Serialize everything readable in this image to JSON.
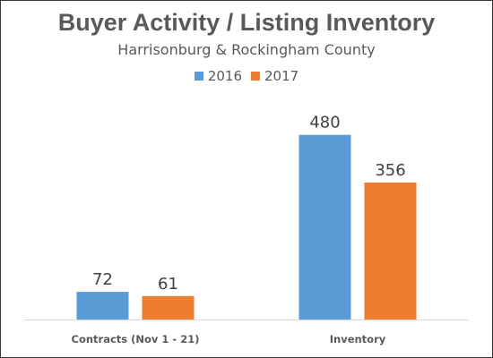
{
  "chart_data": {
    "type": "bar",
    "title": "Buyer Activity / Listing Inventory",
    "subtitle": "Harrisonburg & Rockingham County",
    "categories": [
      "Contracts (Nov 1 - 21)",
      "Inventory"
    ],
    "series": [
      {
        "name": "2016",
        "values": [
          72,
          480
        ],
        "color": "#5b9bd5"
      },
      {
        "name": "2017",
        "values": [
          61,
          356
        ],
        "color": "#ed7d31"
      }
    ],
    "ylim": [
      0,
      505
    ],
    "grid": false,
    "legend_position": "top-center"
  }
}
